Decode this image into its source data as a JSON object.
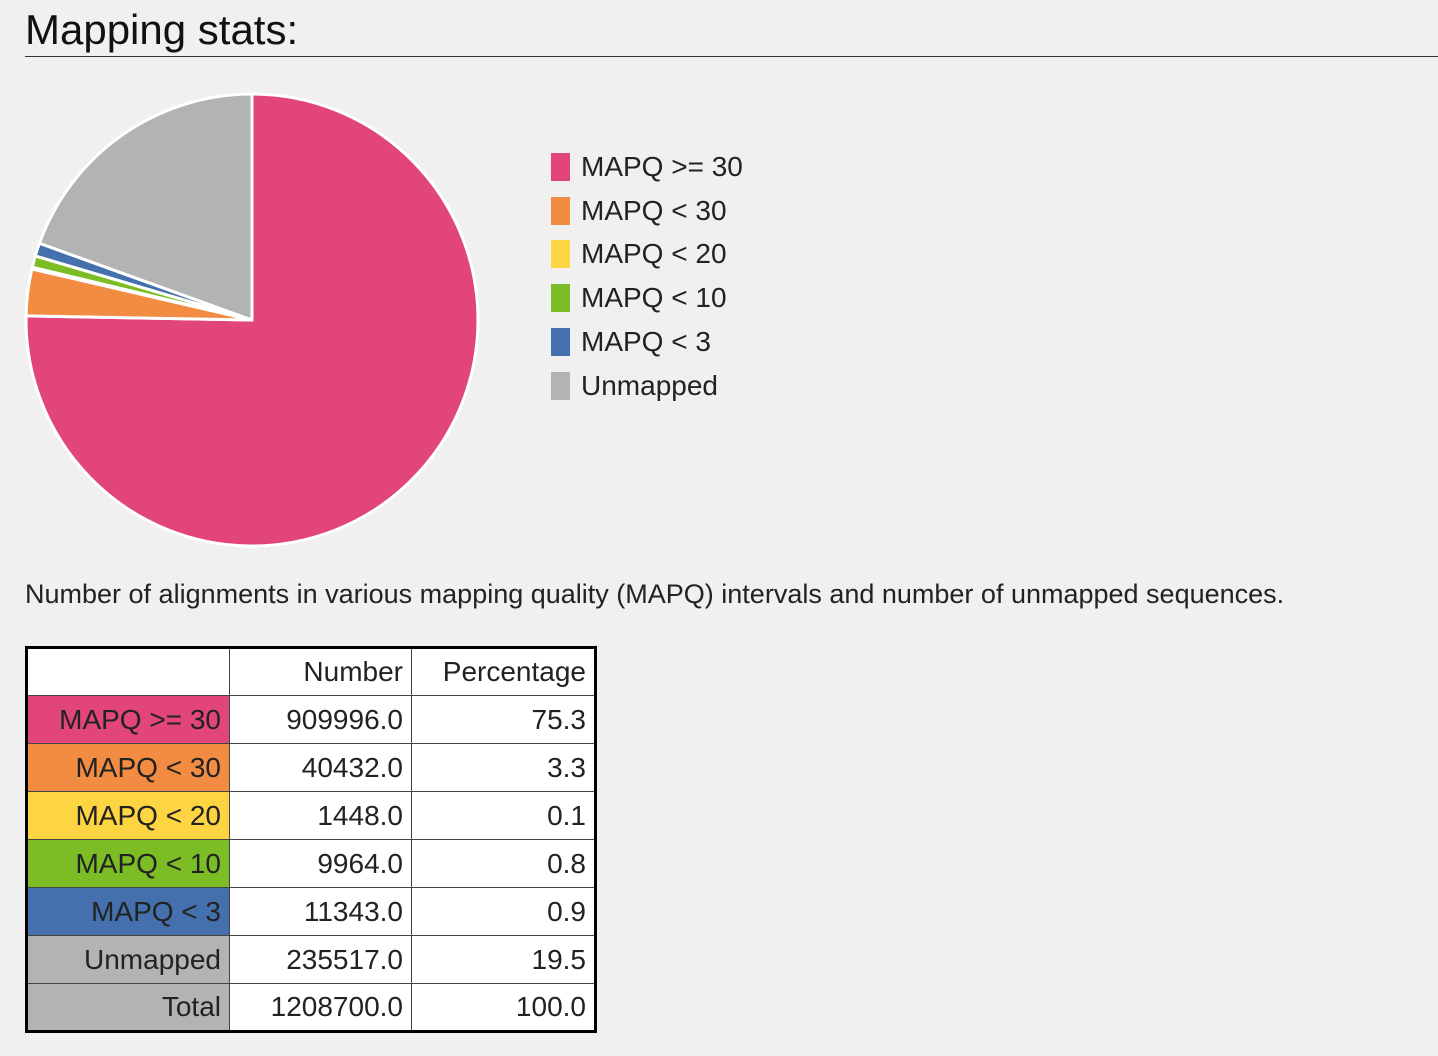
{
  "page": {
    "title": "Mapping stats:",
    "caption": "Number of alignments in various mapping quality (MAPQ) intervals and number of unmapped sequences."
  },
  "chart_data": {
    "type": "pie",
    "categories": [
      "MAPQ >= 30",
      "MAPQ < 30",
      "MAPQ < 20",
      "MAPQ < 10",
      "MAPQ < 3",
      "Unmapped"
    ],
    "values": [
      909996.0,
      40432.0,
      1448.0,
      9964.0,
      11343.0,
      235517.0
    ],
    "colors": [
      "#e1457b",
      "#f28c43",
      "#fdd441",
      "#7cbd26",
      "#4470ae",
      "#b2b4b4"
    ],
    "legend_position": "right",
    "start": "12 o'clock",
    "direction": "clockwise"
  },
  "table": {
    "headers": [
      "",
      "Number",
      "Percentage"
    ],
    "rows": [
      {
        "label": "MAPQ >= 30",
        "number": "909996.0",
        "percentage": "75.3",
        "color": "#e1457b"
      },
      {
        "label": "MAPQ < 30",
        "number": "40432.0",
        "percentage": "3.3",
        "color": "#f28c43"
      },
      {
        "label": "MAPQ < 20",
        "number": "1448.0",
        "percentage": "0.1",
        "color": "#fdd441"
      },
      {
        "label": "MAPQ < 10",
        "number": "9964.0",
        "percentage": "0.8",
        "color": "#7cbd26"
      },
      {
        "label": "MAPQ < 3",
        "number": "11343.0",
        "percentage": "0.9",
        "color": "#4470ae"
      },
      {
        "label": "Unmapped",
        "number": "235517.0",
        "percentage": "19.5",
        "color": "#b2b4b4"
      },
      {
        "label": "Total",
        "number": "1208700.0",
        "percentage": "100.0",
        "color": "#b2b4b4"
      }
    ]
  }
}
